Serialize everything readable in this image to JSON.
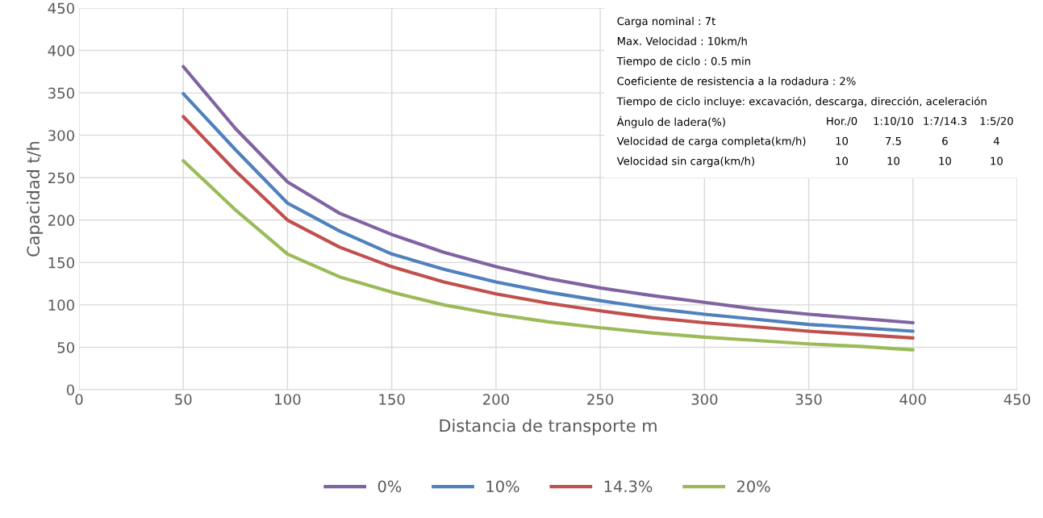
{
  "chart_data": {
    "type": "line",
    "xlabel": "Distancia de transporte m",
    "ylabel": "Capacidad t/h",
    "x": [
      50,
      75,
      100,
      125,
      150,
      175,
      200,
      225,
      250,
      275,
      300,
      325,
      350,
      375,
      400
    ],
    "series": [
      {
        "name": "0%",
        "color": "#8064a2",
        "values": [
          381,
          308,
          245,
          208,
          183,
          162,
          145,
          131,
          120,
          111,
          103,
          95,
          89,
          84,
          79
        ]
      },
      {
        "name": "10%",
        "color": "#4f81bd",
        "values": [
          349,
          283,
          220,
          187,
          160,
          142,
          127,
          115,
          105,
          96,
          89,
          83,
          77,
          73,
          69
        ]
      },
      {
        "name": "14.3%",
        "color": "#c0504d",
        "values": [
          322,
          258,
          200,
          168,
          145,
          127,
          113,
          102,
          93,
          85,
          79,
          74,
          69,
          65,
          61
        ]
      },
      {
        "name": "20%",
        "color": "#9bbb59",
        "values": [
          270,
          212,
          160,
          133,
          115,
          100,
          89,
          80,
          73,
          67,
          62,
          58,
          54,
          51,
          47
        ]
      }
    ],
    "xlim": [
      0,
      450
    ],
    "xticks": [
      0,
      50,
      100,
      150,
      200,
      250,
      300,
      350,
      400,
      450
    ],
    "ylim": [
      0,
      450
    ],
    "yticks": [
      0,
      50,
      100,
      150,
      200,
      250,
      300,
      350,
      400,
      450
    ],
    "grid": true,
    "legend": "bottom",
    "marker": "none",
    "line_style": "solid",
    "annotations": [
      "Carga nominal : 7t",
      "Max. Velocidad : 10km/h",
      "Tiempo de ciclo : 0.5 min",
      "Coeficiente de resistencia a la rodadura : 2%",
      "Tiempo de ciclo incluye: excavación, descarga, dirección, aceleración",
      "Ángulo de ladera(%)",
      "Hor./0",
      "1:10/10",
      "1:7/14.3",
      "1:5/20",
      "Velocidad de carga completa(km/h)",
      "10",
      "7.5",
      "6",
      "4",
      "Velocidad sin carga(km/h)",
      "10",
      "10",
      "10",
      "10"
    ]
  }
}
